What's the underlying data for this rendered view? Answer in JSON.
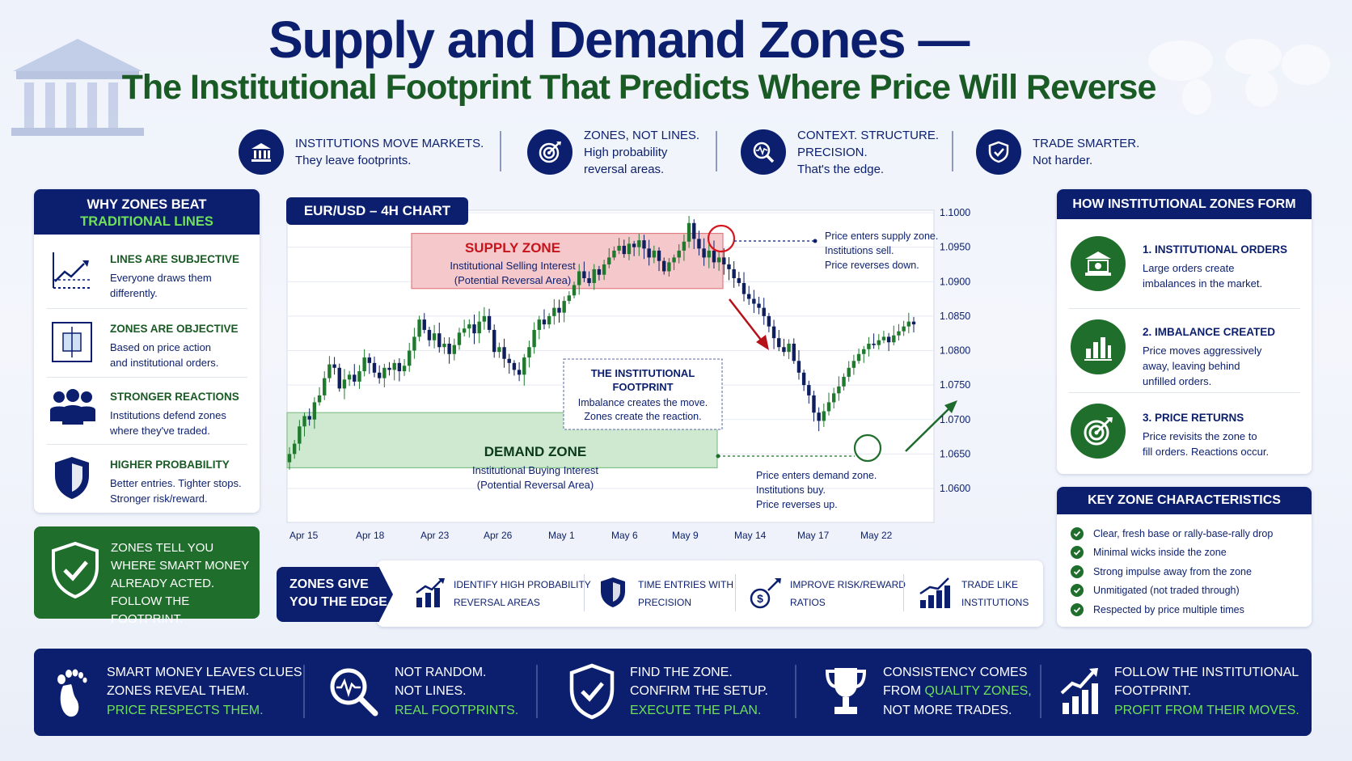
{
  "header": {
    "title": "Supply and Demand Zones —",
    "subtitle": "The Institutional Footprint That Predicts Where Price Will Reverse"
  },
  "features": [
    {
      "icon": "bank-icon",
      "line1": "INSTITUTIONS MOVE MARKETS.",
      "line2": "They leave footprints.",
      "line3": ""
    },
    {
      "icon": "target-icon",
      "line1": "ZONES, NOT LINES.",
      "line2": "High probability",
      "line3": "reversal areas."
    },
    {
      "icon": "magnifier-pulse-icon",
      "line1": "CONTEXT. STRUCTURE.",
      "line2": "PRECISION.",
      "line3": "That's the edge."
    },
    {
      "icon": "shield-check-icon",
      "line1": "TRADE SMARTER.",
      "line2": "Not harder.",
      "line3": ""
    }
  ],
  "left_panel": {
    "title_line1": "WHY ZONES BEAT",
    "title_line2": "TRADITIONAL LINES",
    "items": [
      {
        "icon": "trend-line-icon",
        "heading": "LINES ARE SUBJECTIVE",
        "line1": "Everyone draws them",
        "line2": "differently."
      },
      {
        "icon": "zone-box-icon",
        "heading": "ZONES ARE OBJECTIVE",
        "line1": "Based on price action",
        "line2": "and institutional orders."
      },
      {
        "icon": "people-icon",
        "heading": "STRONGER REACTIONS",
        "line1": "Institutions defend zones",
        "line2": "where they've traded."
      },
      {
        "icon": "shield-icon",
        "heading": "HIGHER PROBABILITY",
        "line1": "Better entries. Tighter stops.",
        "line2": "Stronger risk/reward."
      }
    ],
    "callout": [
      "ZONES TELL YOU",
      "WHERE SMART MONEY",
      "ALREADY ACTED.",
      "FOLLOW THE FOOTPRINT."
    ]
  },
  "chart_data": {
    "type": "candlestick",
    "title": "EUR/USD – 4H CHART",
    "x_ticks": [
      "Apr 15",
      "Apr 18",
      "Apr 23",
      "Apr 26",
      "May 1",
      "May 6",
      "May 9",
      "May 14",
      "May 17",
      "May 22"
    ],
    "y_ticks": [
      "1.1000",
      "1.0950",
      "1.0900",
      "1.0850",
      "1.0800",
      "1.0750",
      "1.0700",
      "1.0650",
      "1.0600"
    ],
    "ylim": [
      1.06,
      1.1
    ],
    "close_path": [
      1.065,
      1.0665,
      1.069,
      1.0705,
      1.07,
      1.0725,
      1.0735,
      1.076,
      1.078,
      1.0775,
      1.0745,
      1.0758,
      1.0765,
      1.0755,
      1.077,
      1.079,
      1.0782,
      1.0768,
      1.076,
      1.0775,
      1.0772,
      1.0782,
      1.077,
      1.0778,
      1.08,
      1.082,
      1.0845,
      1.083,
      1.0815,
      1.0825,
      1.0805,
      1.081,
      1.0795,
      1.0808,
      1.0826,
      1.0832,
      1.0838,
      1.0825,
      1.0842,
      1.085,
      1.083,
      1.0798,
      1.0805,
      1.0788,
      1.0782,
      1.0772,
      1.0765,
      1.079,
      1.0805,
      1.083,
      1.0845,
      1.0838,
      1.085,
      1.0862,
      1.0855,
      1.0872,
      1.088,
      1.0895,
      1.0915,
      1.0905,
      1.0898,
      1.0918,
      1.091,
      1.0925,
      1.0935,
      1.0945,
      1.0952,
      1.094,
      1.0955,
      1.095,
      1.096,
      1.0948,
      1.0935,
      1.0945,
      1.093,
      1.0915,
      1.0928,
      1.0935,
      1.0945,
      1.0958,
      1.0985,
      1.0962,
      1.0948,
      1.0935,
      1.0945,
      1.0928,
      1.0935,
      1.0925,
      1.0918,
      1.0905,
      1.0898,
      1.0882,
      1.0875,
      1.0868,
      1.0862,
      1.085,
      1.0835,
      1.0818,
      1.0805,
      1.0798,
      1.081,
      1.0785,
      1.0768,
      1.075,
      1.0735,
      1.071,
      1.0698,
      1.0712,
      1.0725,
      1.0738,
      1.0748,
      1.0762,
      1.0775,
      1.0785,
      1.0795,
      1.0802,
      1.081,
      1.0808,
      1.0815,
      1.082,
      1.0812,
      1.0822,
      1.0828,
      1.0835,
      1.0842,
      1.0838
    ],
    "zones": [
      {
        "name": "SUPPLY ZONE",
        "line1": "Institutional Selling Interest",
        "line2": "(Potential Reversal Area)",
        "top": 1.097,
        "bottom": 1.089
      },
      {
        "name": "DEMAND ZONE",
        "line1": "Institutional Buying Interest",
        "line2": "(Potential Reversal Area)",
        "top": 1.071,
        "bottom": 1.063
      }
    ],
    "footprint_box": {
      "title_line1": "THE INSTITUTIONAL",
      "title_line2": "FOOTPRINT",
      "line1": "Imbalance creates the move.",
      "line2": "Zones create the reaction."
    },
    "annotation_supply": [
      "Price enters supply zone.",
      "Institutions sell.",
      "Price reverses down."
    ],
    "annotation_demand": [
      "Price enters demand zone.",
      "Institutions buy.",
      "Price reverses up."
    ]
  },
  "edge_bar": {
    "label_line1": "ZONES GIVE",
    "label_line2": "YOU THE EDGE",
    "items": [
      {
        "icon": "bar-chart-up-icon",
        "line1": "IDENTIFY HIGH PROBABILITY",
        "line2": "REVERSAL AREAS"
      },
      {
        "icon": "shield-icon",
        "line1": "TIME ENTRIES WITH",
        "line2": "PRECISION"
      },
      {
        "icon": "dollar-arrow-icon",
        "line1": "IMPROVE RISK/REWARD",
        "line2": "RATIOS"
      },
      {
        "icon": "growth-chart-icon",
        "line1": "TRADE LIKE",
        "line2": "INSTITUTIONS"
      }
    ]
  },
  "right_panel": {
    "title": "HOW INSTITUTIONAL ZONES FORM",
    "items": [
      {
        "icon": "bank-icon",
        "heading": "1. INSTITUTIONAL ORDERS",
        "line1": "Large orders create",
        "line2": "imbalances in the market.",
        "line3": ""
      },
      {
        "icon": "bar-chart-icon",
        "heading": "2. IMBALANCE CREATED",
        "line1": "Price moves aggressively",
        "line2": "away, leaving behind",
        "line3": "unfilled orders."
      },
      {
        "icon": "target-icon",
        "heading": "3. PRICE RETURNS",
        "line1": "Price revisits the zone to",
        "line2": "fill orders. Reactions occur.",
        "line3": ""
      }
    ]
  },
  "characteristics": {
    "title": "KEY ZONE CHARACTERISTICS",
    "items": [
      "Clear, fresh base or rally-base-rally drop",
      "Minimal wicks inside the zone",
      "Strong impulse away from the zone",
      "Unmitigated (not traded through)",
      "Respected by price multiple times"
    ]
  },
  "bottom_banner": [
    {
      "icon": "footprint-icon",
      "line1": "SMART MONEY LEAVES CLUES.",
      "line2": "ZONES REVEAL THEM.",
      "line3": "PRICE RESPECTS THEM."
    },
    {
      "icon": "magnifier-pulse-icon",
      "line1": "NOT RANDOM.",
      "line2": "NOT LINES.",
      "line3": "REAL FOOTPRINTS."
    },
    {
      "icon": "shield-check-icon",
      "line1": "FIND THE ZONE.",
      "line2": "CONFIRM THE SETUP.",
      "line3": "EXECUTE THE PLAN."
    },
    {
      "icon": "trophy-icon",
      "line1": "CONSISTENCY COMES",
      "line2a": "FROM ",
      "line2b": "QUALITY ZONES,",
      "line3": "NOT MORE TRADES."
    },
    {
      "icon": "growth-arrow-icon",
      "line1": "FOLLOW THE INSTITUTIONAL",
      "line2": "FOOTPRINT.",
      "line3": "PROFIT FROM THEIR MOVES."
    }
  ],
  "colors": {
    "navy": "#0b1f6e",
    "green": "#1a5a25",
    "bull": "#1f7a2e",
    "bear": "#0f1f5e",
    "supply": "#e2171f",
    "lime": "#6fe05b"
  }
}
